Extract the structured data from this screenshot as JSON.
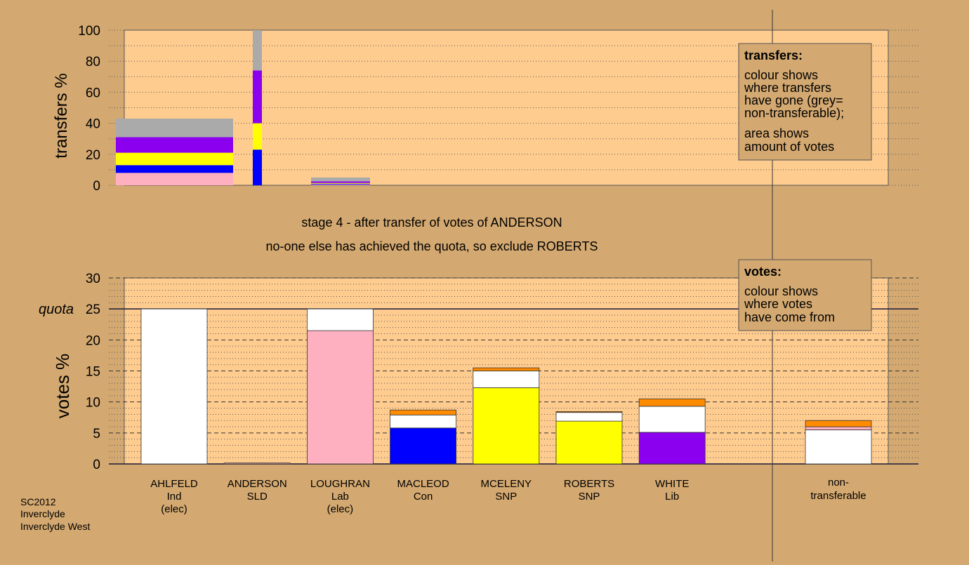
{
  "colors": {
    "background": "#d4a971",
    "plot_bg": "#ffcc90",
    "Lab": "#ffb0c0",
    "Con": "#0000ff",
    "SNP": "#ffff00",
    "Lib": "#8b00ee",
    "elected_surplus": "#ffffff",
    "later_transfers": "#ff8c00",
    "non_transferable": "#aaaaaa"
  },
  "stage_title": "stage 4 - after transfer of votes of ANDERSON",
  "stage_subtitle": "no-one else has achieved the quota, so exclude ROBERTS",
  "footer": [
    "SC2012",
    "Inverclyde",
    "Inverclyde West"
  ],
  "transfers_legend": {
    "title": "transfers:",
    "lines1": [
      "colour shows",
      "where transfers",
      "have gone (grey=",
      "non-transferable);"
    ],
    "lines2": [
      "area shows",
      "amount of votes"
    ]
  },
  "votes_legend": {
    "title": "votes:",
    "lines": [
      "colour shows",
      "where votes",
      "have come from"
    ]
  },
  "chart_data": [
    {
      "type": "bar",
      "name": "transfers",
      "ylabel": "transfers %",
      "ylim": [
        0,
        100
      ],
      "yticks": [
        0,
        20,
        40,
        60,
        80,
        100
      ],
      "grid": "dotted",
      "bars": [
        {
          "stages": "stage 2 (wide)",
          "segments": [
            {
              "party": "Lab",
              "from": 0,
              "to": 8
            },
            {
              "party": "Con",
              "from": 8,
              "to": 13
            },
            {
              "party": "SNP",
              "from": 13,
              "to": 21
            },
            {
              "party": "Lib",
              "from": 21,
              "to": 31
            },
            {
              "party": "non_transferable",
              "from": 31,
              "to": 43
            }
          ]
        },
        {
          "stages": "stage 3 (narrow)",
          "segments": [
            {
              "party": "Con",
              "from": 0,
              "to": 23
            },
            {
              "party": "SNP",
              "from": 23,
              "to": 40
            },
            {
              "party": "Lib",
              "from": 40,
              "to": 74
            },
            {
              "party": "non_transferable",
              "from": 74,
              "to": 100
            }
          ]
        },
        {
          "stages": "stage 4 (wide)",
          "segments": [
            {
              "party": "Lab",
              "from": 0,
              "to": 0.5
            },
            {
              "party": "Con",
              "from": 0.5,
              "to": 1
            },
            {
              "party": "SNP",
              "from": 1,
              "to": 1.5
            },
            {
              "party": "Lib",
              "from": 1.5,
              "to": 2.5
            },
            {
              "party": "non_transferable",
              "from": 2.5,
              "to": 5
            }
          ]
        }
      ]
    },
    {
      "type": "bar",
      "name": "votes",
      "ylabel": "votes %",
      "ylim": [
        0,
        30
      ],
      "yticks": [
        0,
        5,
        10,
        15,
        20,
        25,
        30
      ],
      "quota": 25,
      "quota_label": "quota",
      "grid": "dashed",
      "candidates": [
        {
          "name": "AHLFELD",
          "party": "Ind",
          "note": "(elec)",
          "segments": [
            {
              "party": "elected_surplus",
              "from": 0,
              "to": 25
            }
          ]
        },
        {
          "name": "ANDERSON",
          "party": "SLD",
          "note": "",
          "segments": [
            {
              "party": "Lab",
              "from": 0,
              "to": 0.15
            }
          ]
        },
        {
          "name": "LOUGHRAN",
          "party": "Lab",
          "note": "(elec)",
          "segments": [
            {
              "party": "Lab",
              "from": 0,
              "to": 21.5
            },
            {
              "party": "elected_surplus",
              "from": 21.5,
              "to": 25
            }
          ]
        },
        {
          "name": "MACLEOD",
          "party": "Con",
          "note": "",
          "segments": [
            {
              "party": "Con",
              "from": 0,
              "to": 5.8
            },
            {
              "party": "elected_surplus",
              "from": 5.8,
              "to": 7.9
            },
            {
              "party": "later_transfers",
              "from": 7.9,
              "to": 8.7
            }
          ]
        },
        {
          "name": "MCELENY",
          "party": "SNP",
          "note": "",
          "segments": [
            {
              "party": "SNP",
              "from": 0,
              "to": 12.3
            },
            {
              "party": "elected_surplus",
              "from": 12.3,
              "to": 15.0
            },
            {
              "party": "later_transfers",
              "from": 15.0,
              "to": 15.5
            }
          ]
        },
        {
          "name": "ROBERTS",
          "party": "SNP",
          "note": "",
          "segments": [
            {
              "party": "SNP",
              "from": 0,
              "to": 6.9
            },
            {
              "party": "elected_surplus",
              "from": 6.9,
              "to": 8.3
            },
            {
              "party": "later_transfers",
              "from": 8.3,
              "to": 8.45
            }
          ]
        },
        {
          "name": "WHITE",
          "party": "Lib",
          "note": "",
          "segments": [
            {
              "party": "Lib",
              "from": 0,
              "to": 5.1
            },
            {
              "party": "elected_surplus",
              "from": 5.1,
              "to": 9.3
            },
            {
              "party": "later_transfers",
              "from": 9.3,
              "to": 10.5
            }
          ]
        }
      ],
      "non_transferable": {
        "label_lines": [
          "non-",
          "transferable"
        ],
        "segments": [
          {
            "party": "elected_surplus",
            "from": 0,
            "to": 5.5
          },
          {
            "party": "Lab",
            "from": 5.5,
            "to": 6.0
          },
          {
            "party": "later_transfers",
            "from": 6.0,
            "to": 7.0
          }
        ]
      }
    }
  ]
}
